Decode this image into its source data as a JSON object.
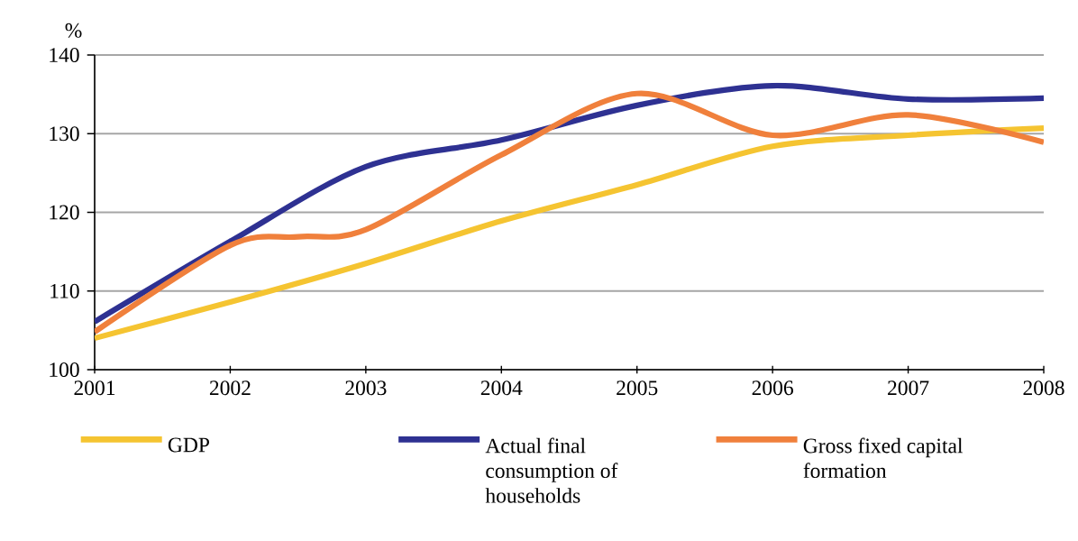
{
  "chart_data": {
    "type": "line",
    "ylabel": "%",
    "xlim": [
      2001,
      2008
    ],
    "xticks": [
      2001,
      2002,
      2003,
      2004,
      2005,
      2006,
      2007,
      2008
    ],
    "ylim": [
      100,
      140
    ],
    "yticks": [
      100,
      110,
      120,
      130,
      140
    ],
    "grid": "y",
    "legend": "bottom",
    "line_style": "solid",
    "series": [
      {
        "name": "GDP",
        "color": "#f5c431",
        "x": [
          2001,
          2002,
          2003,
          2004,
          2005,
          2006,
          2007,
          2008
        ],
        "values": [
          104,
          108.6,
          113.5,
          118.9,
          123.5,
          128.4,
          129.8,
          130.7
        ]
      },
      {
        "name": "Actual final consumption of households",
        "color": "#2e3192",
        "x": [
          2001,
          2002,
          2003,
          2004,
          2005,
          2006,
          2007,
          2008
        ],
        "values": [
          106.1,
          116.3,
          125.8,
          129.2,
          133.6,
          136.1,
          134.4,
          134.5
        ]
      },
      {
        "name": "Gross fixed capital formation",
        "color": "#f0803c",
        "x": [
          2001,
          2002,
          2002.5,
          2003,
          2004,
          2005,
          2006,
          2007,
          2008
        ],
        "values": [
          104.8,
          115.8,
          116.9,
          117.8,
          127.3,
          135.1,
          129.8,
          132.4,
          128.9
        ]
      }
    ]
  }
}
